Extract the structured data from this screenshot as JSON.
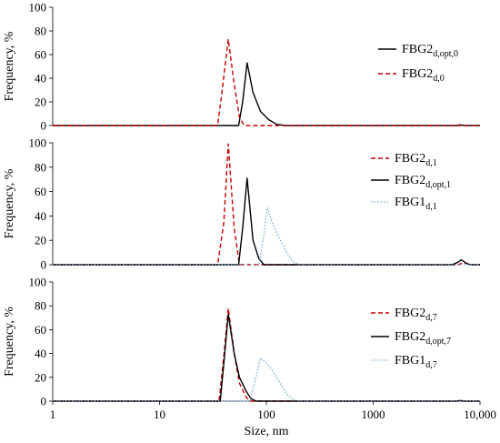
{
  "chart_data": [
    {
      "type": "line",
      "xscale": "log",
      "xlim": [
        1,
        10000
      ],
      "ylim": [
        0,
        100
      ],
      "yticks": [
        0,
        20,
        40,
        60,
        80,
        100
      ],
      "ylabel": "Frequency, %",
      "series": [
        {
          "label": "FBG2",
          "sub": "d,opt,0",
          "color": "#000000",
          "dash": "solid",
          "points": [
            [
              1,
              0
            ],
            [
              55,
              0
            ],
            [
              60,
              20
            ],
            [
              66,
              53
            ],
            [
              75,
              28
            ],
            [
              88,
              12
            ],
            [
              105,
              5
            ],
            [
              125,
              1
            ],
            [
              150,
              0
            ],
            [
              6000,
              0
            ],
            [
              6500,
              0.6
            ],
            [
              7200,
              0
            ],
            [
              10000,
              0
            ]
          ]
        },
        {
          "label": "FBG2",
          "sub": "d,0",
          "color": "#c00000",
          "dash": "dashed",
          "points": [
            [
              1,
              0
            ],
            [
              35,
              0
            ],
            [
              38,
              25
            ],
            [
              44,
              73
            ],
            [
              50,
              35
            ],
            [
              56,
              7
            ],
            [
              62,
              0
            ],
            [
              10000,
              0
            ]
          ]
        }
      ]
    },
    {
      "type": "line",
      "xscale": "log",
      "xlim": [
        1,
        10000
      ],
      "ylim": [
        0,
        100
      ],
      "yticks": [
        0,
        20,
        40,
        60,
        80,
        100
      ],
      "ylabel": "Frequency, %",
      "series": [
        {
          "label": "FBG2",
          "sub": "d,1",
          "color": "#c00000",
          "dash": "dashed",
          "points": [
            [
              1,
              0
            ],
            [
              35,
              0
            ],
            [
              40,
              35
            ],
            [
              44,
              99
            ],
            [
              50,
              30
            ],
            [
              56,
              0
            ],
            [
              6300,
              0
            ],
            [
              7000,
              2
            ],
            [
              8000,
              0
            ],
            [
              10000,
              0
            ]
          ]
        },
        {
          "label": "FBG2",
          "sub": "d,opt,1",
          "color": "#000000",
          "dash": "solid",
          "points": [
            [
              1,
              0
            ],
            [
              55,
              0
            ],
            [
              60,
              30
            ],
            [
              66,
              71
            ],
            [
              75,
              20
            ],
            [
              85,
              5
            ],
            [
              95,
              0
            ],
            [
              5500,
              0
            ],
            [
              6200,
              2
            ],
            [
              6700,
              4
            ],
            [
              7500,
              1
            ],
            [
              8200,
              0
            ],
            [
              10000,
              0
            ]
          ]
        },
        {
          "label": "FBG1",
          "sub": "d,1",
          "color": "#5b9bd5",
          "dash": "dotted",
          "points": [
            [
              1,
              0
            ],
            [
              85,
              0
            ],
            [
              95,
              25
            ],
            [
              102,
              47
            ],
            [
              115,
              33
            ],
            [
              135,
              20
            ],
            [
              155,
              10
            ],
            [
              175,
              3
            ],
            [
              200,
              0
            ],
            [
              10000,
              0
            ]
          ]
        }
      ]
    },
    {
      "type": "line",
      "xscale": "log",
      "xlim": [
        1,
        10000
      ],
      "ylim": [
        0,
        100
      ],
      "yticks": [
        0,
        20,
        40,
        60,
        80,
        100
      ],
      "ylabel": "Frequency, %",
      "xlabel": "Size, nm",
      "xticks": [
        {
          "v": 1,
          "t": "1"
        },
        {
          "v": 10,
          "t": "10"
        },
        {
          "v": 100,
          "t": "100"
        },
        {
          "v": 1000,
          "t": "1000"
        },
        {
          "v": 10000,
          "t": "10,000"
        }
      ],
      "series": [
        {
          "label": "FBG2",
          "sub": "d,7",
          "color": "#c00000",
          "dash": "dashed",
          "points": [
            [
              1,
              0
            ],
            [
              36,
              0
            ],
            [
              40,
              38
            ],
            [
              44,
              78
            ],
            [
              50,
              40
            ],
            [
              56,
              15
            ],
            [
              65,
              3
            ],
            [
              72,
              0
            ],
            [
              10000,
              0
            ]
          ]
        },
        {
          "label": "FBG2",
          "sub": "d,opt,7",
          "color": "#000000",
          "dash": "solid",
          "points": [
            [
              1,
              0
            ],
            [
              37,
              0
            ],
            [
              40,
              32
            ],
            [
              44,
              73
            ],
            [
              50,
              40
            ],
            [
              56,
              20
            ],
            [
              65,
              8
            ],
            [
              72,
              2
            ],
            [
              80,
              0
            ],
            [
              6000,
              0
            ],
            [
              6600,
              0.5
            ],
            [
              7200,
              0
            ],
            [
              10000,
              0
            ]
          ]
        },
        {
          "label": "FBG1",
          "sub": "d,7",
          "color": "#5b9bd5",
          "dash": "dotted",
          "points": [
            [
              1,
              0
            ],
            [
              70,
              0
            ],
            [
              80,
              20
            ],
            [
              88,
              36
            ],
            [
              100,
              32
            ],
            [
              115,
              25
            ],
            [
              135,
              15
            ],
            [
              155,
              6
            ],
            [
              180,
              1
            ],
            [
              200,
              0
            ],
            [
              10000,
              0
            ]
          ]
        }
      ]
    }
  ]
}
